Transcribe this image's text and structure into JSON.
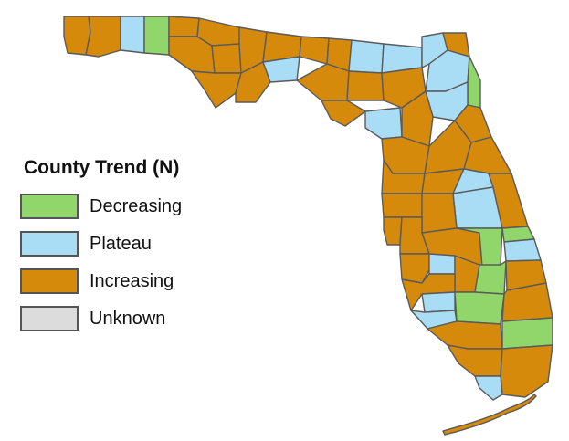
{
  "legend": {
    "title": "County Trend (N)",
    "items": [
      {
        "key": "decreasing",
        "label": "Decreasing",
        "color": "#90d66a"
      },
      {
        "key": "plateau",
        "label": "Plateau",
        "color": "#a9ddf5"
      },
      {
        "key": "increasing",
        "label": "Increasing",
        "color": "#d68a0b"
      },
      {
        "key": "unknown",
        "label": "Unknown",
        "color": "#dcdcdc"
      }
    ]
  },
  "outline_color": "#5a5a5a"
}
